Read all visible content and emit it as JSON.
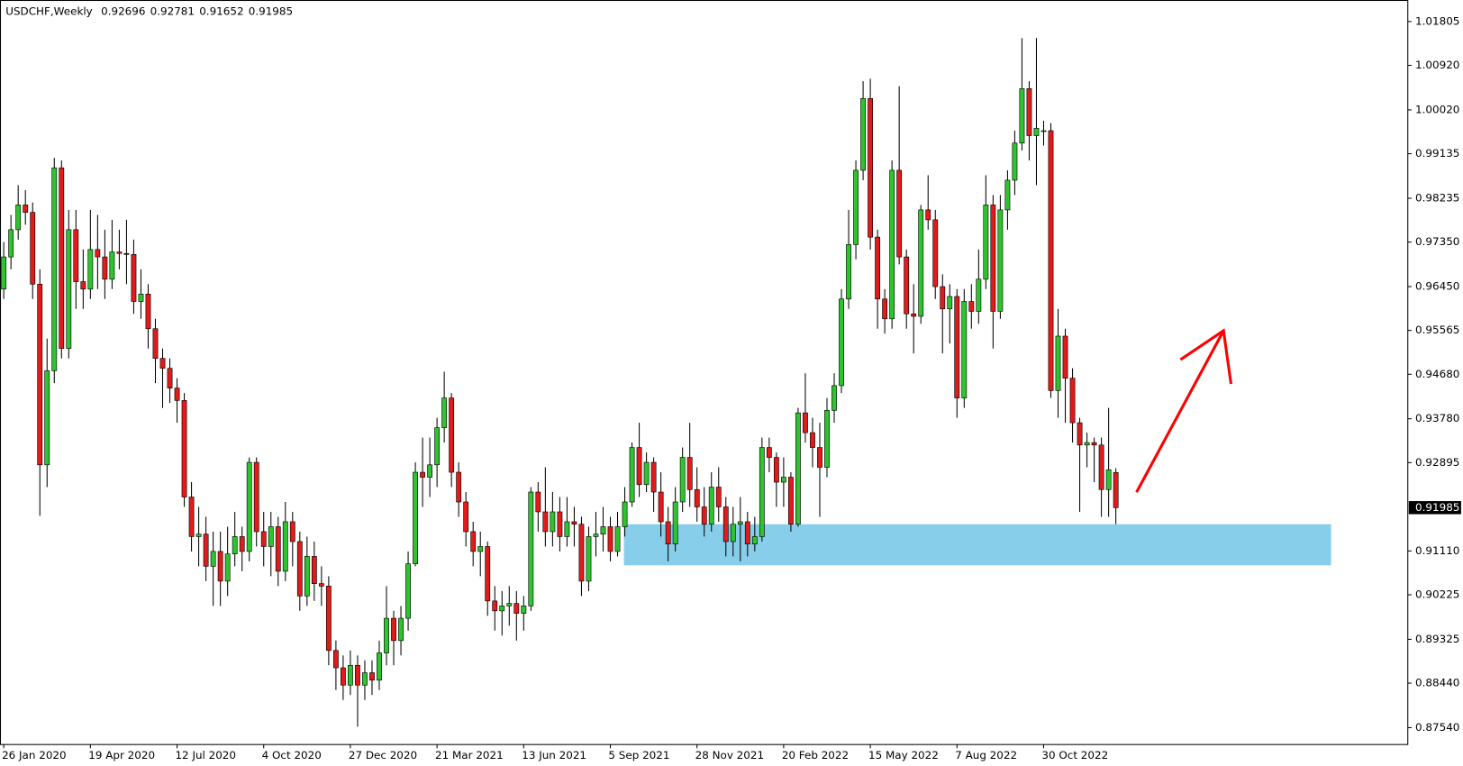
{
  "chart_data": {
    "type": "candlestick",
    "symbol": "USDCHF,Weekly",
    "up_color": "#2ec42e",
    "down_color": "#e31a1a",
    "categories": [
      "26 Jan 2020",
      null,
      null,
      null,
      null,
      null,
      null,
      null,
      null,
      null,
      null,
      null,
      "19 Apr 2020",
      null,
      null,
      null,
      null,
      null,
      null,
      null,
      null,
      null,
      null,
      null,
      "12 Jul 2020",
      null,
      null,
      null,
      null,
      null,
      null,
      null,
      null,
      null,
      null,
      null,
      "4 Oct 2020",
      null,
      null,
      null,
      null,
      null,
      null,
      null,
      null,
      null,
      null,
      null,
      "27 Dec 2020",
      null,
      null,
      null,
      null,
      null,
      null,
      null,
      null,
      null,
      null,
      null,
      "21 Mar 2021",
      null,
      null,
      null,
      null,
      null,
      null,
      null,
      null,
      null,
      null,
      null,
      "13 Jun 2021",
      null,
      null,
      null,
      null,
      null,
      null,
      null,
      null,
      null,
      null,
      null,
      "5 Sep 2021",
      null,
      null,
      null,
      null,
      null,
      null,
      null,
      null,
      null,
      null,
      null,
      "28 Nov 2021",
      null,
      null,
      null,
      null,
      null,
      null,
      null,
      null,
      null,
      null,
      null,
      "20 Feb 2022",
      null,
      null,
      null,
      null,
      null,
      null,
      null,
      null,
      null,
      null,
      null,
      "15 May 2022",
      null,
      null,
      null,
      null,
      null,
      null,
      null,
      null,
      null,
      null,
      null,
      "7 Aug 2022",
      null,
      null,
      null,
      null,
      null,
      null,
      null,
      null,
      null,
      null,
      null,
      "30 Oct 2022",
      null,
      null,
      null,
      null,
      null,
      null,
      null,
      null,
      null,
      null
    ],
    "open": [
      0.964,
      0.9705,
      0.976,
      0.981,
      0.9795,
      0.965,
      0.9285,
      0.9475,
      0.9885,
      0.952,
      0.976,
      0.9655,
      0.964,
      0.972,
      0.9705,
      0.966,
      0.9715,
      0.9712,
      0.971,
      0.9615,
      0.963,
      0.956,
      0.95,
      0.948,
      0.944,
      0.9415,
      0.922,
      0.914,
      0.9145,
      0.908,
      0.911,
      0.905,
      0.9105,
      0.914,
      0.911,
      0.929,
      0.915,
      0.912,
      0.916,
      0.907,
      0.917,
      0.913,
      0.902,
      0.91,
      0.9045,
      0.904,
      0.891,
      0.8875,
      0.884,
      0.888,
      0.884,
      0.8865,
      0.885,
      0.8905,
      0.8975,
      0.893,
      0.8975,
      0.9085,
      0.927,
      0.926,
      0.9285,
      0.936,
      0.942,
      0.927,
      0.921,
      0.915,
      0.911,
      0.912,
      0.901,
      0.899,
      0.9,
      0.9005,
      0.8985,
      0.9,
      0.923,
      0.919,
      0.915,
      0.919,
      0.914,
      0.917,
      0.9165,
      0.905,
      0.914,
      0.9145,
      0.916,
      0.911,
      0.916,
      0.921,
      0.932,
      0.9245,
      0.929,
      0.923,
      0.917,
      0.9125,
      0.921,
      0.93,
      0.9235,
      0.92,
      0.9165,
      0.924,
      0.92,
      0.913,
      0.9165,
      0.917,
      0.9125,
      0.914,
      0.932,
      0.93,
      0.925,
      0.926,
      0.9165,
      0.939,
      0.935,
      0.932,
      0.928,
      0.9395,
      0.9445,
      0.962,
      0.973,
      0.988,
      1.0025,
      0.9745,
      0.962,
      0.958,
      0.988,
      0.9705,
      0.959,
      0.9585,
      0.98,
      0.978,
      0.9645,
      0.96,
      0.9625,
      0.942,
      0.9615,
      0.9595,
      0.966,
      0.981,
      0.9595,
      0.98,
      0.986,
      0.9935,
      1.0045,
      0.995,
      0.996,
      0.996,
      0.9435,
      0.9545,
      0.946,
      0.937,
      0.9325,
      0.933,
      0.9325,
      0.9235,
      0.92696
    ],
    "high": [
      0.9735,
      0.979,
      0.985,
      0.984,
      0.9815,
      0.968,
      0.954,
      0.9905,
      0.99,
      0.98,
      0.98,
      0.972,
      0.98,
      0.979,
      0.976,
      0.978,
      0.976,
      0.978,
      0.974,
      0.968,
      0.965,
      0.958,
      0.952,
      0.95,
      0.946,
      0.943,
      0.925,
      0.92,
      0.918,
      0.915,
      0.915,
      0.916,
      0.919,
      0.916,
      0.93,
      0.93,
      0.919,
      0.919,
      0.918,
      0.921,
      0.919,
      0.915,
      0.914,
      0.913,
      0.908,
      0.906,
      0.893,
      0.89,
      0.891,
      0.89,
      0.889,
      0.889,
      0.893,
      0.904,
      0.899,
      0.9,
      0.911,
      0.929,
      0.934,
      0.934,
      0.938,
      0.9473,
      0.943,
      0.929,
      0.923,
      0.917,
      0.915,
      0.913,
      0.904,
      0.903,
      0.904,
      0.903,
      0.902,
      0.924,
      0.925,
      0.928,
      0.923,
      0.922,
      0.922,
      0.92,
      0.918,
      0.916,
      0.919,
      0.92,
      0.918,
      0.919,
      0.924,
      0.933,
      0.937,
      0.931,
      0.93,
      0.927,
      0.92,
      0.924,
      0.932,
      0.937,
      0.928,
      0.924,
      0.927,
      0.928,
      0.922,
      0.92,
      0.922,
      0.919,
      0.918,
      0.934,
      0.934,
      0.931,
      0.93,
      0.927,
      0.94,
      0.947,
      0.938,
      0.937,
      0.942,
      0.947,
      0.964,
      0.98,
      0.99,
      1.006,
      1.0065,
      0.976,
      0.964,
      0.99,
      1.005,
      0.972,
      0.965,
      0.981,
      0.987,
      0.98,
      0.967,
      0.965,
      0.964,
      0.964,
      0.965,
      0.972,
      0.987,
      0.983,
      0.983,
      0.988,
      0.996,
      1.0147,
      1.006,
      1.0147,
      0.998,
      0.9975,
      0.96,
      0.956,
      0.948,
      0.938,
      0.935,
      0.934,
      0.934,
      0.94,
      0.92781
    ],
    "low": [
      0.962,
      0.968,
      0.974,
      0.977,
      0.962,
      0.9182,
      0.924,
      0.945,
      0.95,
      0.95,
      0.96,
      0.96,
      0.962,
      0.964,
      0.962,
      0.964,
      0.968,
      0.965,
      0.959,
      0.958,
      0.952,
      0.945,
      0.94,
      0.941,
      0.937,
      0.92,
      0.911,
      0.908,
      0.905,
      0.9,
      0.9,
      0.902,
      0.908,
      0.907,
      0.909,
      0.912,
      0.908,
      0.906,
      0.904,
      0.905,
      0.908,
      0.899,
      0.9,
      0.901,
      0.9,
      0.888,
      0.883,
      0.881,
      0.882,
      0.8756,
      0.881,
      0.882,
      0.883,
      0.888,
      0.888,
      0.89,
      0.895,
      0.908,
      0.92,
      0.922,
      0.924,
      0.933,
      0.924,
      0.918,
      0.912,
      0.908,
      0.906,
      0.898,
      0.895,
      0.894,
      0.896,
      0.893,
      0.895,
      0.899,
      0.915,
      0.912,
      0.912,
      0.911,
      0.912,
      0.912,
      0.902,
      0.903,
      0.91,
      0.911,
      0.909,
      0.91,
      0.914,
      0.92,
      0.922,
      0.923,
      0.919,
      0.914,
      0.909,
      0.911,
      0.919,
      0.92,
      0.917,
      0.914,
      0.915,
      0.917,
      0.91,
      0.91,
      0.909,
      0.91,
      0.911,
      0.913,
      0.927,
      0.92,
      0.92,
      0.915,
      0.916,
      0.933,
      0.928,
      0.918,
      0.926,
      0.937,
      0.943,
      0.96,
      0.97,
      0.986,
      0.972,
      0.956,
      0.955,
      0.956,
      0.969,
      0.956,
      0.951,
      0.957,
      0.976,
      0.962,
      0.951,
      0.953,
      0.938,
      0.94,
      0.956,
      0.957,
      0.964,
      0.952,
      0.958,
      0.976,
      0.983,
      0.992,
      0.99,
      0.985,
      0.993,
      0.942,
      0.938,
      0.937,
      0.933,
      0.919,
      0.928,
      0.925,
      0.918,
      0.918,
      0.91652
    ],
    "close": [
      0.9705,
      0.976,
      0.981,
      0.9795,
      0.965,
      0.9285,
      0.9475,
      0.9885,
      0.952,
      0.976,
      0.9655,
      0.964,
      0.972,
      0.9705,
      0.966,
      0.9715,
      0.9712,
      0.971,
      0.9615,
      0.963,
      0.956,
      0.95,
      0.948,
      0.944,
      0.9415,
      0.922,
      0.914,
      0.9145,
      0.908,
      0.911,
      0.905,
      0.9105,
      0.914,
      0.911,
      0.929,
      0.915,
      0.912,
      0.916,
      0.907,
      0.917,
      0.913,
      0.902,
      0.91,
      0.9045,
      0.904,
      0.891,
      0.8875,
      0.884,
      0.888,
      0.884,
      0.8865,
      0.885,
      0.8905,
      0.8975,
      0.893,
      0.8975,
      0.9085,
      0.927,
      0.926,
      0.9285,
      0.936,
      0.942,
      0.927,
      0.921,
      0.915,
      0.911,
      0.912,
      0.901,
      0.899,
      0.9,
      0.9005,
      0.8985,
      0.9,
      0.923,
      0.919,
      0.915,
      0.919,
      0.914,
      0.917,
      0.9165,
      0.905,
      0.914,
      0.9145,
      0.916,
      0.911,
      0.916,
      0.921,
      0.932,
      0.9245,
      0.929,
      0.923,
      0.917,
      0.9125,
      0.921,
      0.93,
      0.9235,
      0.92,
      0.9165,
      0.924,
      0.92,
      0.913,
      0.9165,
      0.917,
      0.9125,
      0.914,
      0.932,
      0.93,
      0.925,
      0.926,
      0.9165,
      0.939,
      0.935,
      0.932,
      0.928,
      0.9395,
      0.9445,
      0.962,
      0.973,
      0.988,
      1.0025,
      0.9745,
      0.962,
      0.958,
      0.988,
      0.9705,
      0.959,
      0.9585,
      0.98,
      0.978,
      0.9645,
      0.96,
      0.9625,
      0.942,
      0.9615,
      0.9595,
      0.966,
      0.981,
      0.9595,
      0.98,
      0.986,
      0.9935,
      1.0045,
      0.995,
      0.9965,
      0.996,
      0.9435,
      0.9545,
      0.946,
      0.937,
      0.9325,
      0.933,
      0.9325,
      0.9235,
      0.9275,
      0.91985
    ],
    "ylim": [
      0.872,
      1.0224
    ],
    "yticks": [
      1.01805,
      {
        "value": 1.0092,
        "label": "1.00920"
      },
      {
        "value": 1.0002,
        "label": "1.00020"
      },
      0.99135,
      0.98235,
      {
        "value": 0.9735,
        "label": "0.97350"
      },
      {
        "value": 0.9645,
        "label": "0.96450"
      },
      0.95565,
      {
        "value": 0.9468,
        "label": "0.94680"
      },
      {
        "value": 0.9378,
        "label": "0.93780"
      },
      0.92895,
      {
        "value": 0.9111,
        "label": "0.91110"
      },
      0.90225,
      0.89325,
      {
        "value": 0.8844,
        "label": "0.88440"
      },
      {
        "value": 0.8754,
        "label": "0.87540"
      }
    ],
    "zone": {
      "low": 0.9082,
      "high": 0.9165,
      "color": "#87ceeb"
    }
  }
}
